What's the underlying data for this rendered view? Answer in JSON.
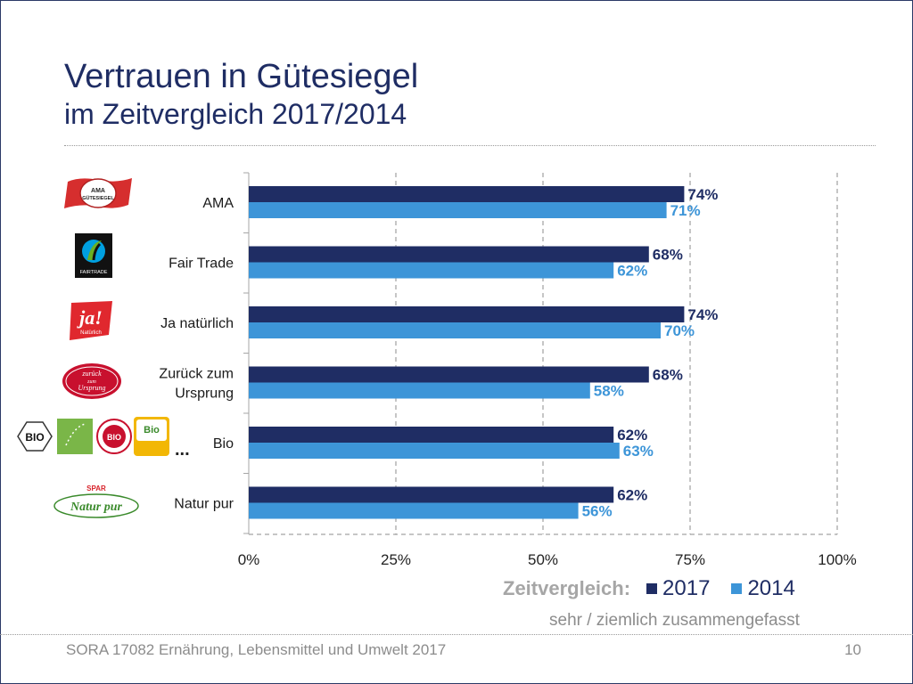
{
  "slide": {
    "title_line1": "Vertrauen in Gütesiegel",
    "title_line2": "im Zeitvergleich 2017/2014",
    "footer": "SORA 17082 Ernährung, Lebensmittel und Umwelt 2017",
    "page_number": "10",
    "subtitle": "sehr / ziemlich zusammengefasst"
  },
  "logos": {
    "ama_text": "AMA\nGÜTESIEGEL",
    "fairtrade_text": "FAIRTRADE",
    "ja_text": "ja!",
    "ja_sub": "Natürlich",
    "zurueck_text": "zurück zum Ursprung",
    "bio_text": "BIO",
    "bio_austria_text": "Bio",
    "spar_text": "SPAR",
    "naturpur_text": "Natur pur",
    "ellipsis": "..."
  },
  "legend": {
    "title": "Zeitvergleich:",
    "items": [
      {
        "label": "2017",
        "color": "#1f2d64"
      },
      {
        "label": "2014",
        "color": "#3d95d8"
      }
    ]
  },
  "chart_data": {
    "type": "bar",
    "orientation": "horizontal",
    "categories": [
      "AMA",
      "Fair Trade",
      "Ja natürlich",
      "Zurück zum Ursprung",
      "Bio",
      "Natur pur"
    ],
    "category_lines": [
      [
        "AMA"
      ],
      [
        "Fair Trade"
      ],
      [
        "Ja natürlich"
      ],
      [
        "Zurück zum",
        "Ursprung"
      ],
      [
        "Bio"
      ],
      [
        "Natur pur"
      ]
    ],
    "series": [
      {
        "name": "2017",
        "color": "#1f2d64",
        "values": [
          74,
          68,
          74,
          68,
          62,
          62
        ],
        "labels": [
          "74%",
          "68%",
          "74%",
          "68%",
          "62%",
          "62%"
        ]
      },
      {
        "name": "2014",
        "color": "#3d95d8",
        "values": [
          71,
          62,
          70,
          58,
          63,
          56
        ],
        "labels": [
          "71%",
          "62%",
          "70%",
          "58%",
          "63%",
          "56%"
        ]
      }
    ],
    "xlim": [
      0,
      100
    ],
    "x_ticks": [
      0,
      25,
      50,
      75,
      100
    ],
    "x_tick_labels": [
      "0%",
      "25%",
      "50%",
      "75%",
      "100%"
    ],
    "grid": "vertical dashed",
    "legend_position": "bottom-right"
  }
}
